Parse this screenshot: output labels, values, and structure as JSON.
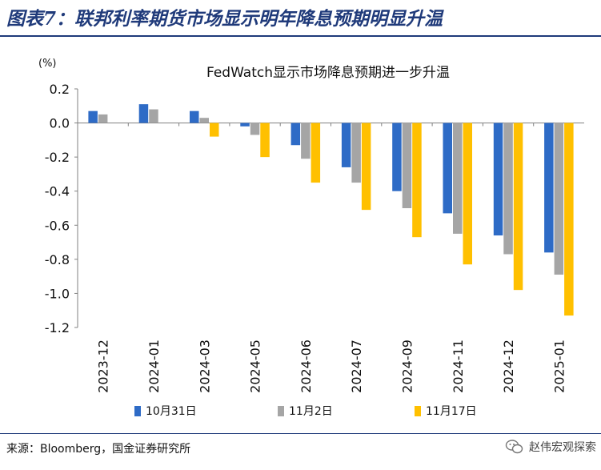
{
  "figure_title": "图表7：联邦利率期货市场显示明年降息预期明显升温",
  "source": "来源：Bloomberg，国金证券研究所",
  "watermark": "赵伟宏观探索",
  "colors": {
    "blue": "#2e6bc6",
    "gray": "#a5a5a5",
    "gold": "#ffc000",
    "title_navy": "#1f3a7a"
  },
  "chart_data": {
    "type": "bar",
    "title": "FedWatch显示市场降息预期进一步升温",
    "unit_label": "(%)",
    "categories": [
      "2023-12",
      "2024-01",
      "2024-03",
      "2024-05",
      "2024-06",
      "2024-07",
      "2024-09",
      "2024-11",
      "2024-12",
      "2025-01"
    ],
    "series": [
      {
        "name": "10月31日",
        "color": "#2e6bc6",
        "values": [
          0.07,
          0.11,
          0.07,
          -0.02,
          -0.13,
          -0.26,
          -0.4,
          -0.53,
          -0.66,
          -0.76
        ]
      },
      {
        "name": "11月2日",
        "color": "#a5a5a5",
        "values": [
          0.05,
          0.08,
          0.03,
          -0.07,
          -0.21,
          -0.35,
          -0.5,
          -0.65,
          -0.77,
          -0.89
        ]
      },
      {
        "name": "11月17日",
        "color": "#ffc000",
        "values": [
          0.0,
          0.0,
          -0.08,
          -0.2,
          -0.35,
          -0.51,
          -0.67,
          -0.83,
          -0.98,
          -1.13
        ]
      }
    ],
    "yticks": [
      "0.2",
      "0.0",
      "-0.2",
      "-0.4",
      "-0.6",
      "-0.8",
      "-1.0",
      "-1.2"
    ],
    "ylim": [
      -1.2,
      0.2
    ],
    "grid": false,
    "legend_position": "bottom"
  }
}
